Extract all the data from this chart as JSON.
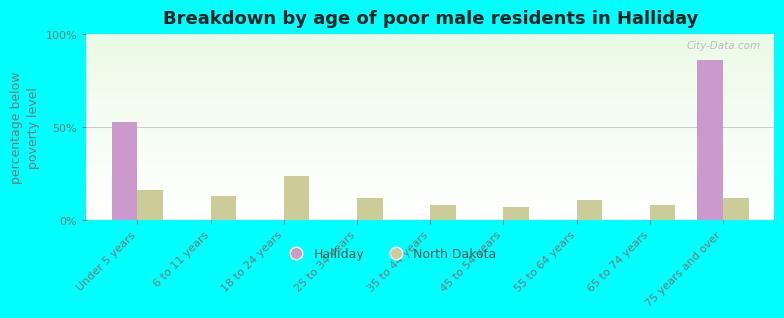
{
  "title": "Breakdown by age of poor male residents in Halliday",
  "categories": [
    "Under 5 years",
    "6 to 11 years",
    "18 to 24 years",
    "25 to 34 years",
    "35 to 44 years",
    "45 to 54 years",
    "55 to 64 years",
    "65 to 74 years",
    "75 years and over"
  ],
  "halliday_values": [
    53,
    0,
    0,
    0,
    0,
    0,
    0,
    0,
    86
  ],
  "nd_values": [
    16,
    13,
    24,
    12,
    8,
    7,
    11,
    8,
    12
  ],
  "halliday_color": "#cc99cc",
  "nd_color": "#cccc99",
  "background_color": "#00ffff",
  "ylabel": "percentage below\npoverty level",
  "yticks": [
    0,
    50,
    100
  ],
  "ytick_labels": [
    "0%",
    "50%",
    "100%"
  ],
  "bar_width": 0.35,
  "title_fontsize": 13,
  "axis_label_fontsize": 9,
  "tick_fontsize": 8,
  "legend_labels": [
    "Halliday",
    "North Dakota"
  ],
  "watermark": "City-Data.com"
}
